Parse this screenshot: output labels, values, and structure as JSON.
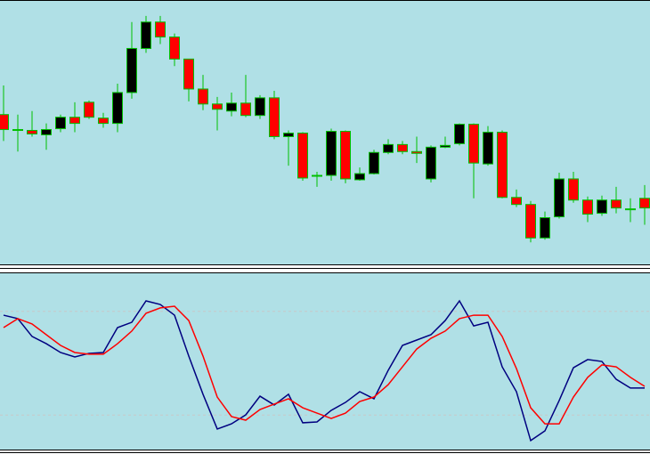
{
  "chart_data": [
    {
      "type": "candlestick",
      "background": "#b0e0e6",
      "up_color": "#000000",
      "down_color": "#ff0000",
      "wick_color": "#00c000",
      "ylim": [
        0,
        300
      ],
      "open": [
        170,
        153,
        152,
        147,
        154,
        167,
        184,
        166,
        160,
        195,
        245,
        275,
        258,
        233,
        199,
        182,
        174,
        183,
        169,
        189,
        145,
        149,
        101,
        101,
        151,
        96,
        103,
        127,
        136,
        128,
        97,
        133,
        137,
        159,
        114,
        150,
        76,
        68,
        30,
        54,
        97,
        73,
        58,
        73,
        63,
        75
      ],
      "high": [
        203,
        170,
        174,
        160,
        170,
        184,
        186,
        172,
        205,
        275,
        282,
        282,
        262,
        233,
        215,
        190,
        195,
        215,
        192,
        197,
        152,
        150,
        105,
        154,
        152,
        110,
        130,
        142,
        140,
        145,
        135,
        145,
        160,
        160,
        157,
        152,
        85,
        72,
        60,
        104,
        105,
        77,
        78,
        88,
        75,
        90
      ],
      "low": [
        140,
        128,
        145,
        130,
        150,
        150,
        165,
        155,
        150,
        188,
        240,
        250,
        225,
        185,
        175,
        152,
        168,
        167,
        165,
        142,
        112,
        95,
        88,
        95,
        92,
        95,
        102,
        125,
        125,
        115,
        93,
        132,
        135,
        75,
        112,
        75,
        65,
        25,
        28,
        52,
        70,
        48,
        55,
        58,
        48,
        45
      ],
      "close": [
        153,
        152,
        148,
        153,
        167,
        160,
        167,
        160,
        195,
        245,
        275,
        258,
        233,
        199,
        182,
        176,
        183,
        169,
        189,
        145,
        149,
        98,
        100,
        151,
        97,
        103,
        127,
        136,
        128,
        126,
        133,
        135,
        159,
        115,
        150,
        76,
        68,
        30,
        53,
        97,
        73,
        57,
        73,
        64,
        62,
        64
      ]
    },
    {
      "type": "line",
      "background": "#b0e0e6",
      "levels": [
        80,
        20
      ],
      "level_color": "#c8c8c8",
      "ylim": [
        0,
        100
      ],
      "series": [
        {
          "color": "#000080",
          "values": [
            77.8,
            75.8,
            65.5,
            61.3,
            56.2,
            53.6,
            55.7,
            56.2,
            70.6,
            73.7,
            86.1,
            84.0,
            77.8,
            54.1,
            32.0,
            11.9,
            14.9,
            20.1,
            30.9,
            25.8,
            32.0,
            15.5,
            16.0,
            22.7,
            27.3,
            33.5,
            29.4,
            45.9,
            60.3,
            63.4,
            66.5,
            74.7,
            86.1,
            71.6,
            73.7,
            47.9,
            33.5,
            5.2,
            10.8,
            28.4,
            47.4,
            52.1,
            51.0,
            40.7,
            35.6,
            35.6
          ]
        },
        {
          "color": "#ff0000",
          "values": [
            70.6,
            75.8,
            72.7,
            66.5,
            60.3,
            56.2,
            55.2,
            55.2,
            61.3,
            68.6,
            78.9,
            82.0,
            83.0,
            74.7,
            54.1,
            30.4,
            19.1,
            17.0,
            23.2,
            26.3,
            29.4,
            24.2,
            21.1,
            18.0,
            21.1,
            27.8,
            30.4,
            37.6,
            47.9,
            58.2,
            64.4,
            68.6,
            75.8,
            77.8,
            77.8,
            65.5,
            46.9,
            24.2,
            14.9,
            14.9,
            30.4,
            41.8,
            49.0,
            47.9,
            41.8,
            36.6
          ]
        }
      ]
    }
  ]
}
